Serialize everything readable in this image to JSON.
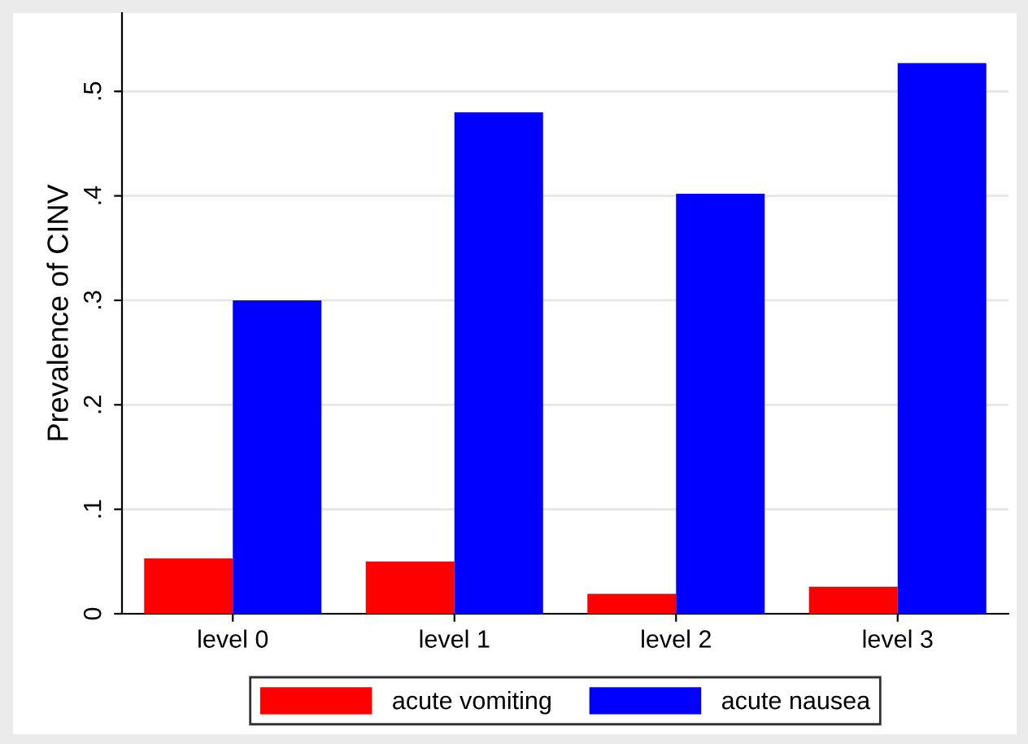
{
  "chart_data": {
    "type": "bar",
    "ylabel": "Prevalence of CINV",
    "categories": [
      "level 0",
      "level 1",
      "level 2",
      "level 3"
    ],
    "series": [
      {
        "name": "acute vomiting",
        "color": "#ff0000",
        "values": [
          0.053,
          0.05,
          0.019,
          0.026
        ]
      },
      {
        "name": "acute nausea",
        "color": "#0000ff",
        "values": [
          0.3,
          0.48,
          0.402,
          0.527
        ]
      }
    ],
    "ylim": [
      0,
      0.575
    ],
    "yticks": [
      0,
      {
        "value": 0.1,
        "label": ".1"
      },
      {
        "value": 0.2,
        "label": ".2"
      },
      {
        "value": 0.3,
        "label": ".3"
      },
      {
        "value": 0.4,
        "label": ".4"
      },
      {
        "value": 0.5,
        "label": ".5"
      }
    ],
    "grid": "y",
    "legend": "bottom"
  }
}
